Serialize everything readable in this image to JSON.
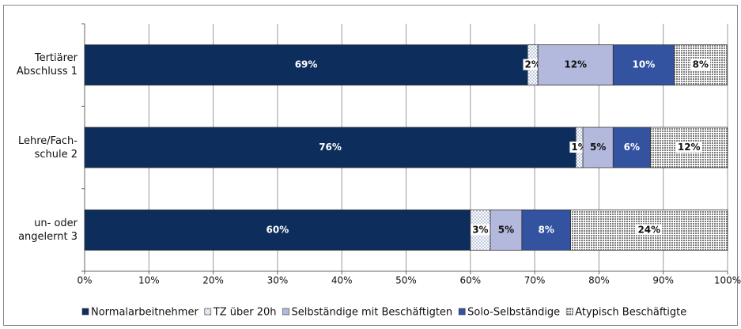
{
  "chart_data": {
    "type": "stacked_barh",
    "categories": [
      "Tertiärer\nAbschluss 1",
      "Lehre/Fach-\nschule 2",
      "un- oder\nangelernt 3"
    ],
    "series": [
      {
        "name": "Normalarbeitnehmer",
        "color": "#0d2e5c",
        "values": [
          68.9,
          76.4,
          60.0
        ],
        "value_labels": [
          "69%",
          "76%",
          "60%"
        ]
      },
      {
        "name": "TZ über 20h",
        "color": "#ffffff",
        "pattern": "dots",
        "pattern_color": "#6f86b8",
        "values": [
          1.6,
          1.1,
          3.1
        ],
        "value_labels": [
          "2%",
          "1%",
          "3%"
        ]
      },
      {
        "name": "Selbständige mit Beschäftigten",
        "color": "#b3b9dd",
        "values": [
          11.7,
          4.7,
          4.9
        ],
        "value_labels": [
          "12%",
          "5%",
          "5%"
        ]
      },
      {
        "name": "Solo-Selbständige",
        "color": "#3352a0",
        "values": [
          9.5,
          5.8,
          7.6
        ],
        "value_labels": [
          "10%",
          "6%",
          "8%"
        ]
      },
      {
        "name": "Atypisch Beschäftigte",
        "color": "#ffffff",
        "pattern": "dots",
        "pattern_color": "#222222",
        "values": [
          8.2,
          12.0,
          24.4
        ],
        "value_labels": [
          "8%",
          "12%",
          "24%"
        ]
      }
    ],
    "xlim": [
      0,
      100
    ],
    "xticks": [
      {
        "value": 0,
        "label": "0%"
      },
      {
        "value": 10,
        "label": "10%"
      },
      {
        "value": 20,
        "label": "20%"
      },
      {
        "value": 30,
        "label": "30%"
      },
      {
        "value": 40,
        "label": "40%"
      },
      {
        "value": 50,
        "label": "50%"
      },
      {
        "value": 60,
        "label": "60%"
      },
      {
        "value": 70,
        "label": "70%"
      },
      {
        "value": 80,
        "label": "80%"
      },
      {
        "value": 90,
        "label": "90%"
      },
      {
        "value": 100,
        "label": "100%"
      }
    ],
    "grid": true,
    "legend": "bottom"
  }
}
